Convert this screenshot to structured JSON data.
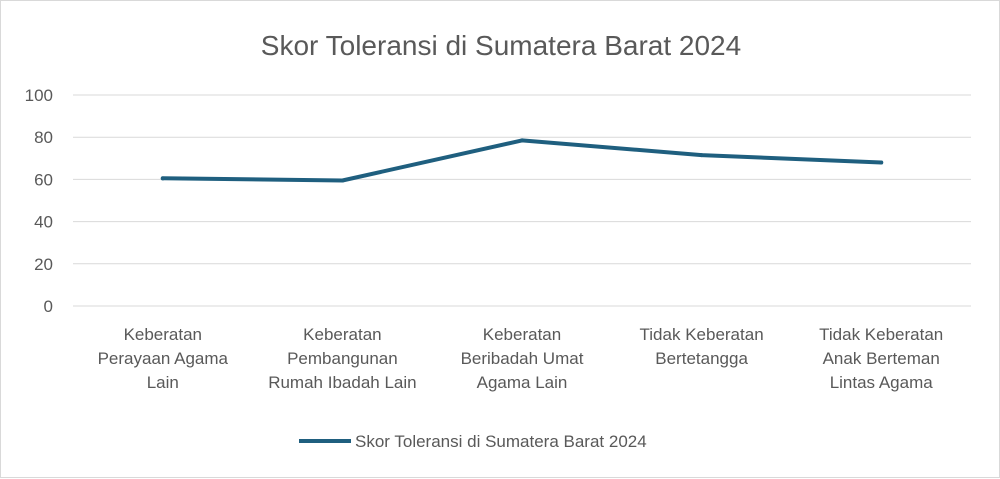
{
  "chart_data": {
    "type": "line",
    "title": "Skor Toleransi di Sumatera Barat 2024",
    "xlabel": "",
    "ylabel": "",
    "ylim": [
      0,
      100
    ],
    "yticks": [
      "0",
      "20",
      "40",
      "60",
      "80",
      "100"
    ],
    "categories": [
      [
        "Keberatan",
        "Perayaan Agama",
        "Lain"
      ],
      [
        "Keberatan",
        "Pembangunan",
        "Rumah Ibadah Lain"
      ],
      [
        "Keberatan",
        "Beribadah Umat",
        "Agama Lain"
      ],
      [
        "Tidak Keberatan",
        "Bertetangga"
      ],
      [
        "Tidak Keberatan",
        "Anak Berteman",
        "Lintas Agama"
      ]
    ],
    "series": [
      {
        "name": "Skor Toleransi di Sumatera Barat 2024",
        "values": [
          60.5,
          59.5,
          78.5,
          71.5,
          68
        ],
        "color": "#1f5f7f"
      }
    ],
    "grid": true,
    "legend": "bottom"
  }
}
